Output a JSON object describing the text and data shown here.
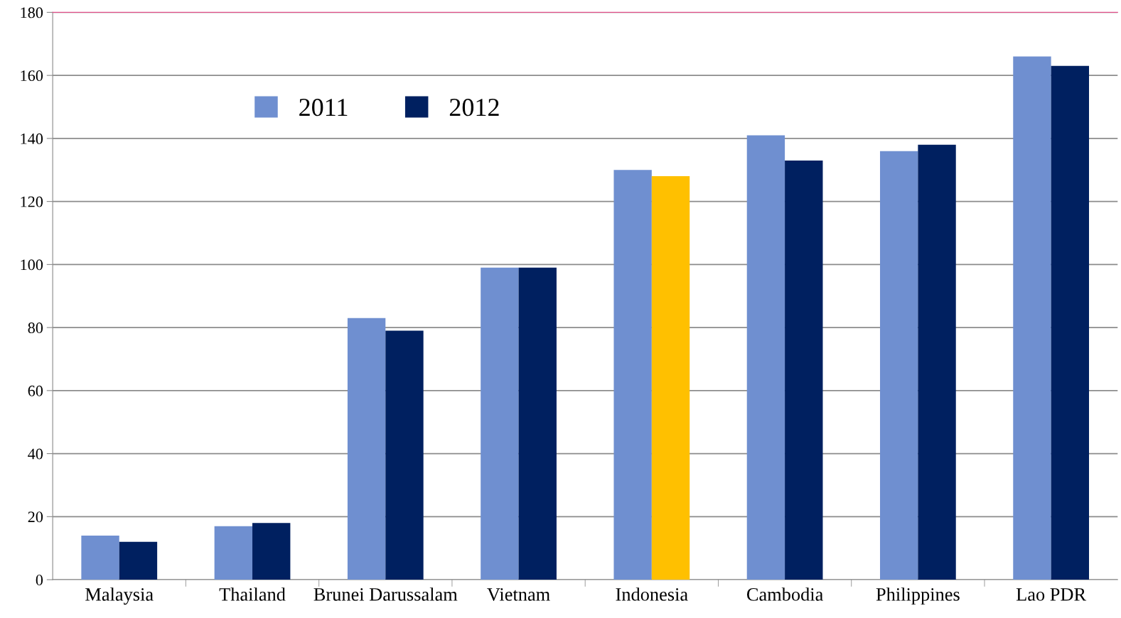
{
  "chart_data": {
    "type": "bar",
    "categories": [
      "Malaysia",
      "Thailand",
      "Brunei Darussalam",
      "Vietnam",
      "Indonesia",
      "Cambodia",
      "Philippines",
      "Lao PDR"
    ],
    "series": [
      {
        "name": "2011",
        "color": "#6f8fd0",
        "values": [
          14,
          17,
          83,
          99,
          130,
          141,
          136,
          166
        ]
      },
      {
        "name": "2012",
        "color": "#002060",
        "colors": [
          "#002060",
          "#002060",
          "#002060",
          "#002060",
          "#ffc000",
          "#002060",
          "#002060",
          "#002060"
        ],
        "values": [
          12,
          18,
          79,
          99,
          128,
          133,
          138,
          163
        ]
      }
    ],
    "ylim": [
      0,
      180
    ],
    "yticks": [
      0,
      20,
      40,
      60,
      80,
      100,
      120,
      140,
      160,
      180
    ],
    "grid": "y",
    "legend": "top left"
  }
}
